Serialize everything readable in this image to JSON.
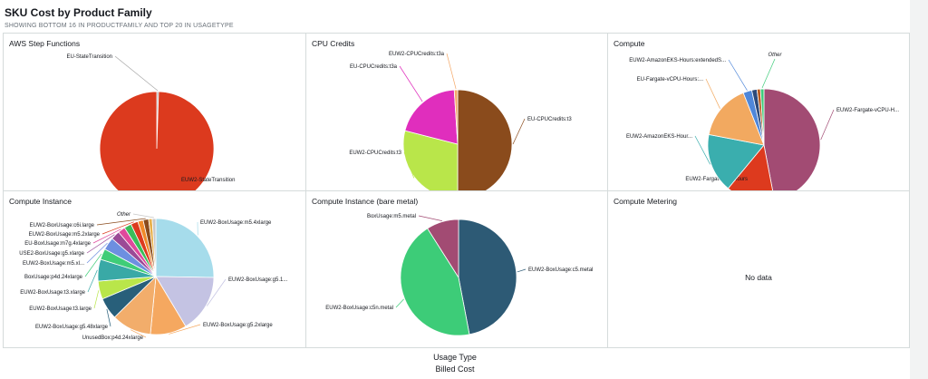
{
  "header": {
    "title": "SKU Cost by Product Family",
    "subtitle": "SHOWING BOTTOM 16 IN PRODUCTFAMILY AND TOP 20 IN USAGETYPE"
  },
  "footer": {
    "group_label": "Usage Type",
    "value_label": "Billed Cost"
  },
  "colors": {
    "panel_border": "#d5dbdb",
    "background": "#ffffff"
  },
  "chart_data": [
    {
      "type": "pie",
      "title": "AWS Step Functions",
      "slices": [
        {
          "label": "EU-StateTransition",
          "value": 0.5,
          "color": "#a9a9a9"
        },
        {
          "label": "EUW2-StateTransition",
          "value": 99.5,
          "color": "#dc3a1e"
        }
      ]
    },
    {
      "type": "pie",
      "title": "CPU Credits",
      "slices": [
        {
          "label": "EU-CPUCredits:t3",
          "value": 50,
          "color": "#8a4b1c"
        },
        {
          "label": "EUW2-CPUCredits:t3",
          "value": 29,
          "color": "#b9e64a"
        },
        {
          "label": "EU-CPUCredits:t3a",
          "value": 20,
          "color": "#e02ebd"
        },
        {
          "label": "EUW2-CPUCredits:t3a",
          "value": 1,
          "color": "#f4a868"
        }
      ]
    },
    {
      "type": "pie",
      "title": "Compute",
      "slices": [
        {
          "label": "EUW2-Fargate-vCPU-H...",
          "value": 47,
          "color": "#a24b73"
        },
        {
          "label": "EUW2-Fargate-GB-Hours",
          "value": 14,
          "color": "#dd3a1e"
        },
        {
          "label": "EUW2-AmazonEKS-Hour...",
          "value": 17,
          "color": "#3aaeae"
        },
        {
          "label": "EU-Fargate-vCPU-Hours:...",
          "value": 16,
          "color": "#f2a960"
        },
        {
          "label": "EUW2-AmazonEKS-Hours:extendedS...",
          "value": 2.5,
          "color": "#4f87d9"
        },
        {
          "label": "",
          "value": 1.5,
          "color": "#2c4a7a"
        },
        {
          "label": "",
          "value": 1,
          "color": "#b85a1f"
        },
        {
          "label": "Other",
          "value": 1,
          "color": "#3dcc7a"
        }
      ]
    },
    {
      "type": "pie",
      "title": "Compute Instance",
      "slices": [
        {
          "label": "EUW2-BoxUsage:m5.4xlarge",
          "value": 25,
          "color": "#a6dceb"
        },
        {
          "label": "EUW2-BoxUsage:g5.1...",
          "value": 16,
          "color": "#c4c3e3"
        },
        {
          "label": "EUW2-BoxUsage:g5.2xlarge",
          "value": 10,
          "color": "#f5a860"
        },
        {
          "label": "UnusedBox:p4d.24xlarge",
          "value": 11,
          "color": "#f2ad6b"
        },
        {
          "label": "EUW2-BoxUsage:g5.48xlarge",
          "value": 6,
          "color": "#285f7a"
        },
        {
          "label": "EUW2-BoxUsage:t3.large",
          "value": 5,
          "color": "#b9e64a"
        },
        {
          "label": "EUW2-BoxUsage:t3.xlarge",
          "value": 6,
          "color": "#39a9a6"
        },
        {
          "label": "BoxUsage:p4d.24xlarge",
          "value": 3,
          "color": "#3fcd78"
        },
        {
          "label": "EUW2-BoxUsage:m5.xl...",
          "value": 3.5,
          "color": "#6d8fe0"
        },
        {
          "label": "USE2-BoxUsage:g5.xlarge",
          "value": 2.5,
          "color": "#9b4a96"
        },
        {
          "label": "EU-BoxUsage:m7g.4xlarge",
          "value": 2,
          "color": "#e0489c"
        },
        {
          "label": "",
          "value": 2,
          "color": "#3bbd5a"
        },
        {
          "label": "EUW2-BoxUsage:m5.2xlarge",
          "value": 2,
          "color": "#dc3a1e"
        },
        {
          "label": "",
          "value": 1.5,
          "color": "#f08a2a"
        },
        {
          "label": "EUW2-BoxUsage:c6i.large",
          "value": 1.5,
          "color": "#8a4b1c"
        },
        {
          "label": "",
          "value": 1,
          "color": "#e8b04a"
        },
        {
          "label": "Other",
          "value": 1,
          "color": "#c7c7c7"
        }
      ]
    },
    {
      "type": "pie",
      "title": "Compute Instance (bare metal)",
      "slices": [
        {
          "label": "EUW2-BoxUsage:c5.metal",
          "value": 47,
          "color": "#2d5a75"
        },
        {
          "label": "EUW2-BoxUsage:c5n.metal",
          "value": 44,
          "color": "#3dcc78"
        },
        {
          "label": "BoxUsage:m5.metal",
          "value": 9,
          "color": "#a24b73"
        }
      ]
    },
    {
      "type": "pie",
      "title": "Compute Metering",
      "slices": [],
      "empty_text": "No data"
    }
  ]
}
